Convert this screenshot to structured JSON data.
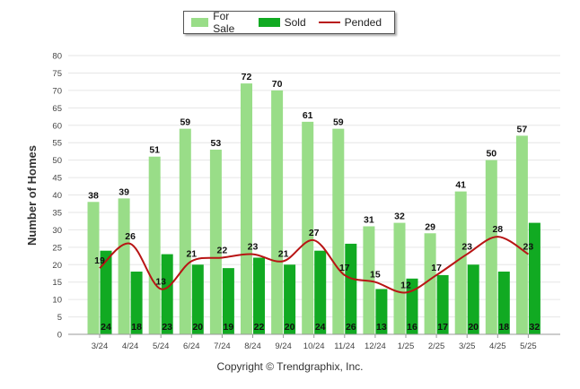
{
  "chart_data": {
    "type": "bar",
    "title": "",
    "ylabel": "Number of Homes",
    "xlabel": "",
    "ylim": [
      0,
      80
    ],
    "yticks": [
      0,
      5,
      10,
      15,
      20,
      25,
      30,
      35,
      40,
      45,
      50,
      55,
      60,
      65,
      70,
      75,
      80
    ],
    "grid": true,
    "legend_position": "top-center",
    "categories": [
      "3/24",
      "4/24",
      "5/24",
      "6/24",
      "7/24",
      "8/24",
      "9/24",
      "10/24",
      "11/24",
      "12/24",
      "1/25",
      "2/25",
      "3/25",
      "4/25",
      "5/25"
    ],
    "series": [
      {
        "name": "For Sale",
        "kind": "bar",
        "color": "#99dd88",
        "values": [
          38,
          39,
          51,
          59,
          53,
          72,
          70,
          61,
          59,
          31,
          32,
          29,
          41,
          50,
          57
        ]
      },
      {
        "name": "Sold",
        "kind": "bar",
        "color": "#11aa22",
        "values": [
          24,
          18,
          23,
          20,
          19,
          22,
          20,
          24,
          26,
          13,
          16,
          17,
          20,
          18,
          32
        ]
      },
      {
        "name": "Pended",
        "kind": "line",
        "color": "#b81414",
        "values": [
          19,
          26,
          13,
          21,
          22,
          23,
          21,
          27,
          17,
          15,
          12,
          17,
          23,
          28,
          23
        ]
      }
    ]
  },
  "legend": {
    "for_sale": "For Sale",
    "sold": "Sold",
    "pended": "Pended"
  },
  "copyright": "Copyright © Trendgraphix, Inc."
}
